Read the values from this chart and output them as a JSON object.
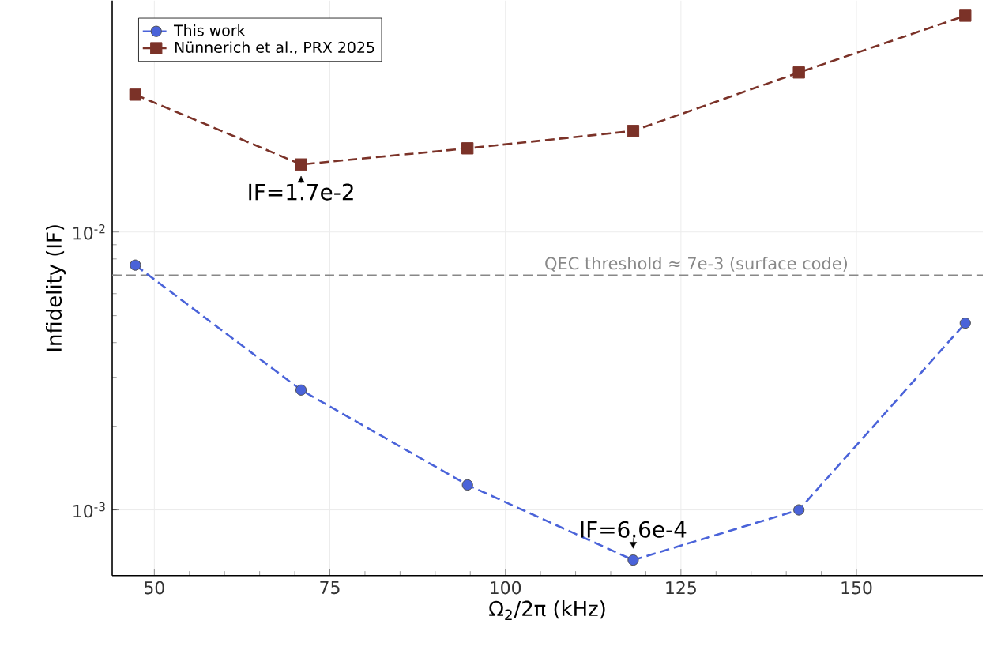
{
  "chart_data": {
    "type": "line",
    "xlabel": "Ω$_{2}$/2π (kHz)",
    "ylabel": "Infidelity (IF)",
    "log": "y",
    "xlim": [
      44,
      168
    ],
    "xticks": [
      50,
      75,
      100,
      125,
      150
    ],
    "ylim": [
      0.00058,
      0.068
    ],
    "yticks": [
      {
        "value": 0.001,
        "label": "10$^{-3}$"
      },
      {
        "value": 0.01,
        "label": "10$^{-2}$"
      }
    ],
    "grid": true,
    "legend": "top left",
    "line_style": "dashed",
    "series": [
      {
        "name": "This work",
        "color": "#4a63d9",
        "marker": "circle",
        "x": [
          47.3,
          70.9,
          94.6,
          118.2,
          141.8,
          165.5
        ],
        "values": [
          0.0076,
          0.0027,
          0.00123,
          0.00066,
          0.001,
          0.0047
        ]
      },
      {
        "name": "Nünnerich et al., PRX 2025",
        "color": "#7b3228",
        "marker": "square",
        "x": [
          47.3,
          70.9,
          94.6,
          118.2,
          141.8,
          165.5
        ],
        "values": [
          0.0312,
          0.0175,
          0.02,
          0.0231,
          0.0375,
          0.06
        ]
      }
    ],
    "ref_lines": [
      {
        "axis": "y",
        "value": 0.007,
        "label": "QEC threshold ≈ 7e-3 (surface code)",
        "color": "#888888",
        "line_style": "dashed"
      }
    ],
    "annotations": [
      {
        "text": "IF=1.7e-2",
        "x": 70.9,
        "y": 0.0175
      },
      {
        "text": "IF=6.6e-4",
        "x": 118.2,
        "y": 0.00066
      }
    ]
  }
}
